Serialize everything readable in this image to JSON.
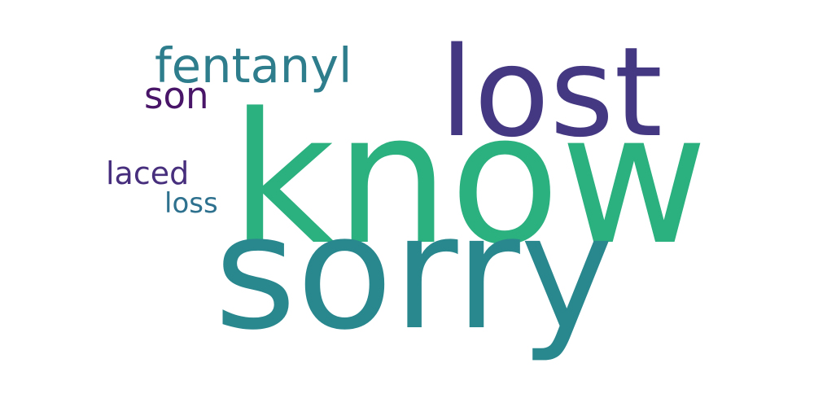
{
  "words": [
    {
      "text": "know",
      "color": "#2bb07f"
    },
    {
      "text": "sorry",
      "color": "#29878e"
    },
    {
      "text": "lost",
      "color": "#453882"
    },
    {
      "text": "fentanyl",
      "color": "#2d7d8d"
    },
    {
      "text": "son",
      "color": "#481568"
    },
    {
      "text": "laced",
      "color": "#472f7d"
    },
    {
      "text": "loss",
      "color": "#2d718e"
    }
  ]
}
